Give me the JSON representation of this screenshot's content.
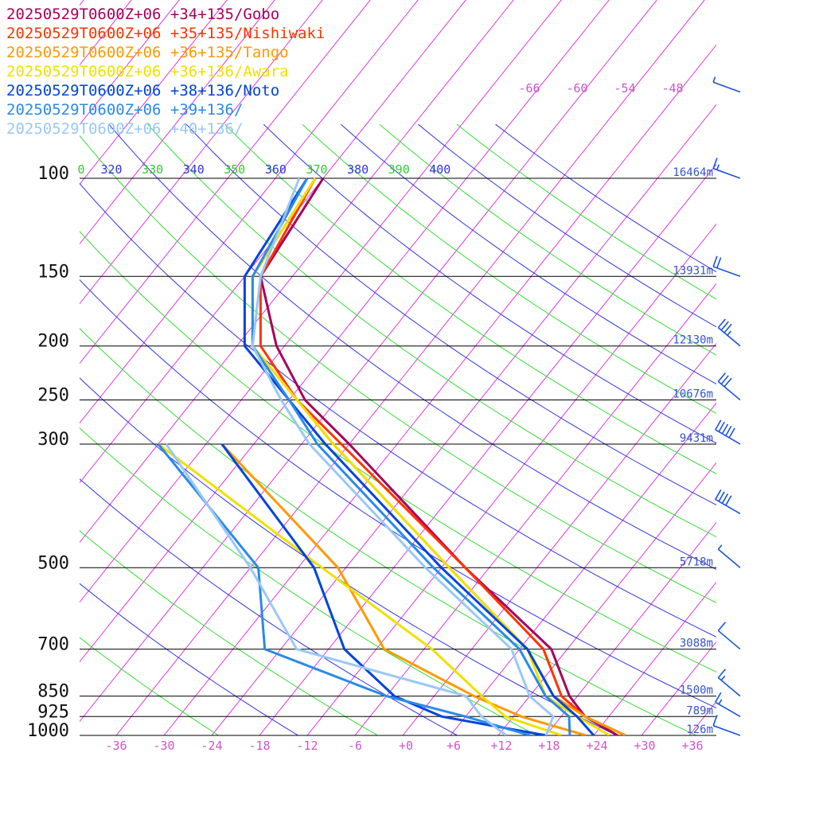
{
  "legend": [
    {
      "label": "20250529T0600Z+06 +34+135/Gobo",
      "color": "#a8005a"
    },
    {
      "label": "20250529T0600Z+06 +35+135/Nishiwaki",
      "color": "#ff3300"
    },
    {
      "label": "20250529T0600Z+06 +36+135/Tango",
      "color": "#ff9900"
    },
    {
      "label": "20250529T0600Z+06 +36+136/Awara",
      "color": "#f0e000"
    },
    {
      "label": "20250529T0600Z+06 +38+136/Noto",
      "color": "#0044dd"
    },
    {
      "label": "20250529T0600Z+06 +39+136/",
      "color": "#2a8ae8"
    },
    {
      "label": "20250529T0600Z+06 +40+136/",
      "color": "#99c8f5"
    }
  ],
  "chart_data": {
    "type": "line",
    "title": "",
    "xlabel": "",
    "ylabel": "",
    "x_scale": "skewed temperature (°C)",
    "y_scale": "log pressure (hPa)",
    "pressure_levels": [
      100,
      150,
      200,
      250,
      300,
      500,
      700,
      850,
      925,
      1000
    ],
    "pressure_labels": [
      "100",
      "150",
      "200",
      "250",
      "300",
      "500",
      "700",
      "850",
      "925",
      "1000"
    ],
    "heights": [
      {
        "p": 100,
        "label": "16464m"
      },
      {
        "p": 150,
        "label": "13931m"
      },
      {
        "p": 200,
        "label": "12130m"
      },
      {
        "p": 250,
        "label": "10676m"
      },
      {
        "p": 300,
        "label": "9431m"
      },
      {
        "p": 500,
        "label": "5718m"
      },
      {
        "p": 700,
        "label": "3088m"
      },
      {
        "p": 850,
        "label": "1500m"
      },
      {
        "p": 925,
        "label": "789m"
      },
      {
        "p": 1000,
        "label": "126m"
      }
    ],
    "temp_ticks": [
      -36,
      -30,
      -24,
      -18,
      -12,
      -6,
      0,
      6,
      12,
      18,
      24,
      30,
      36
    ],
    "temp_tick_labels": [
      "-36",
      "-30",
      "-24",
      "-18",
      "-12",
      "-6",
      "+0",
      "+6",
      "+12",
      "+18",
      "+24",
      "+30",
      "+36"
    ],
    "upper_temp_labels": [
      "-66",
      "-60",
      "-54",
      "-48"
    ],
    "theta_labels": [
      "0",
      "320",
      "330",
      "340",
      "350",
      "360",
      "370",
      "380",
      "390",
      "400"
    ],
    "isotherm_step": 6,
    "series": [
      {
        "name": "20250529T0600Z+06 +34+135/Gobo",
        "temperature": [
          [
            1000,
            27
          ],
          [
            925,
            21
          ],
          [
            850,
            17
          ],
          [
            700,
            10
          ],
          [
            500,
            -9
          ],
          [
            300,
            -36
          ],
          [
            250,
            -46
          ],
          [
            200,
            -55
          ],
          [
            150,
            -64
          ],
          [
            100,
            -66
          ]
        ],
        "dewpoint": []
      },
      {
        "name": "20250529T0600Z+06 +35+135/Nishiwaki",
        "temperature": [
          [
            1000,
            28
          ],
          [
            925,
            21
          ],
          [
            850,
            16
          ],
          [
            700,
            9
          ],
          [
            500,
            -9
          ],
          [
            300,
            -37
          ],
          [
            250,
            -47
          ],
          [
            200,
            -57
          ],
          [
            150,
            -64
          ],
          [
            100,
            -67
          ]
        ],
        "dewpoint": []
      },
      {
        "name": "20250529T0600Z+06 +36+135/Tango",
        "temperature": [
          [
            1000,
            28
          ],
          [
            925,
            21
          ],
          [
            850,
            15
          ],
          [
            700,
            7
          ],
          [
            500,
            -11
          ],
          [
            300,
            -38
          ],
          [
            250,
            -47
          ],
          [
            200,
            -58
          ],
          [
            150,
            -65
          ],
          [
            100,
            -67
          ]
        ],
        "dewpoint": [
          [
            1000,
            23
          ],
          [
            925,
            13
          ],
          [
            850,
            5
          ],
          [
            700,
            -11
          ],
          [
            500,
            -25
          ],
          [
            300,
            -52
          ]
        ]
      },
      {
        "name": "20250529T0600Z+06 +36+136/Awara",
        "temperature": [
          [
            1000,
            26
          ],
          [
            925,
            20
          ],
          [
            850,
            14
          ],
          [
            700,
            7
          ],
          [
            500,
            -11
          ],
          [
            300,
            -38
          ],
          [
            250,
            -47
          ],
          [
            200,
            -58
          ],
          [
            150,
            -65
          ],
          [
            100,
            -67
          ]
        ],
        "dewpoint": [
          [
            1000,
            20
          ],
          [
            925,
            11
          ],
          [
            850,
            6
          ],
          [
            700,
            -5
          ],
          [
            500,
            -27
          ],
          [
            300,
            -60
          ]
        ]
      },
      {
        "name": "20250529T0600Z+06 +38+136/Noto",
        "temperature": [
          [
            1000,
            24
          ],
          [
            925,
            20
          ],
          [
            850,
            15
          ],
          [
            700,
            7
          ],
          [
            500,
            -12
          ],
          [
            300,
            -39
          ],
          [
            250,
            -48
          ],
          [
            200,
            -59
          ],
          [
            150,
            -66
          ],
          [
            100,
            -68
          ]
        ],
        "dewpoint": [
          [
            1000,
            18
          ],
          [
            925,
            3
          ],
          [
            850,
            -5
          ],
          [
            700,
            -16
          ],
          [
            500,
            -28
          ],
          [
            300,
            -52
          ]
        ]
      },
      {
        "name": "20250529T0600Z+06 +39+136/",
        "temperature": [
          [
            1000,
            21
          ],
          [
            925,
            19
          ],
          [
            850,
            14
          ],
          [
            700,
            6
          ],
          [
            500,
            -13
          ],
          [
            300,
            -40
          ],
          [
            250,
            -48
          ],
          [
            200,
            -58
          ],
          [
            150,
            -65
          ],
          [
            100,
            -68
          ]
        ],
        "dewpoint": [
          [
            1000,
            16
          ],
          [
            925,
            6
          ],
          [
            850,
            -6
          ],
          [
            700,
            -26
          ],
          [
            500,
            -35
          ],
          [
            300,
            -60
          ]
        ]
      },
      {
        "name": "20250529T0600Z+06 +40+136/",
        "temperature": [
          [
            1000,
            18
          ],
          [
            925,
            17
          ],
          [
            850,
            12
          ],
          [
            700,
            5
          ],
          [
            500,
            -14
          ],
          [
            300,
            -41
          ],
          [
            250,
            -49
          ],
          [
            200,
            -58
          ],
          [
            150,
            -64
          ],
          [
            100,
            -69
          ]
        ],
        "dewpoint": [
          [
            1000,
            13
          ],
          [
            925,
            8
          ],
          [
            850,
            4
          ],
          [
            700,
            -22
          ],
          [
            500,
            -36
          ],
          [
            300,
            -59
          ]
        ]
      }
    ],
    "wind_barbs": [
      {
        "p": 1000,
        "speed_kt": 10,
        "from_deg": 250
      },
      {
        "p": 925,
        "speed_kt": 15,
        "from_deg": 240
      },
      {
        "p": 850,
        "speed_kt": 15,
        "from_deg": 230
      },
      {
        "p": 700,
        "speed_kt": 10,
        "from_deg": 230
      },
      {
        "p": 500,
        "speed_kt": 5,
        "from_deg": 230
      },
      {
        "p": 400,
        "speed_kt": 40,
        "from_deg": 240
      },
      {
        "p": 300,
        "speed_kt": 50,
        "from_deg": 240
      },
      {
        "p": 250,
        "speed_kt": 30,
        "from_deg": 230
      },
      {
        "p": 200,
        "speed_kt": 35,
        "from_deg": 230
      },
      {
        "p": 150,
        "speed_kt": 20,
        "from_deg": 250
      },
      {
        "p": 100,
        "speed_kt": 15,
        "from_deg": 250
      },
      {
        "p": 70,
        "speed_kt": 5,
        "from_deg": 250
      }
    ],
    "grid": true,
    "legend_position": "top-left"
  }
}
